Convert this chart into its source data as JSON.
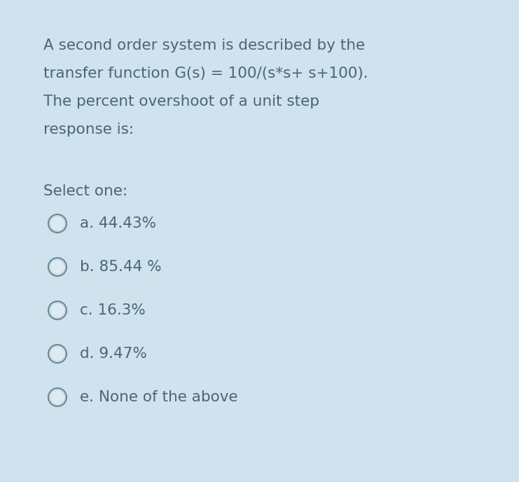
{
  "background_color": "#cfe2ed",
  "text_color": "#4a6678",
  "question_lines": [
    "A second order system is described by the",
    "transfer function G(s) = 100/(s*s+ s+100).",
    "The percent overshoot of a unit step",
    "response is:"
  ],
  "select_label": "Select one:",
  "options": [
    "a. 44.43%",
    "b. 85.44 %",
    "c. 16.3%",
    "d. 9.47%",
    "e. None of the above"
  ],
  "font_size_question": 15.5,
  "font_size_options": 15.5,
  "font_size_select": 15.5,
  "fig_width": 7.41,
  "fig_height": 6.88,
  "dpi": 100
}
